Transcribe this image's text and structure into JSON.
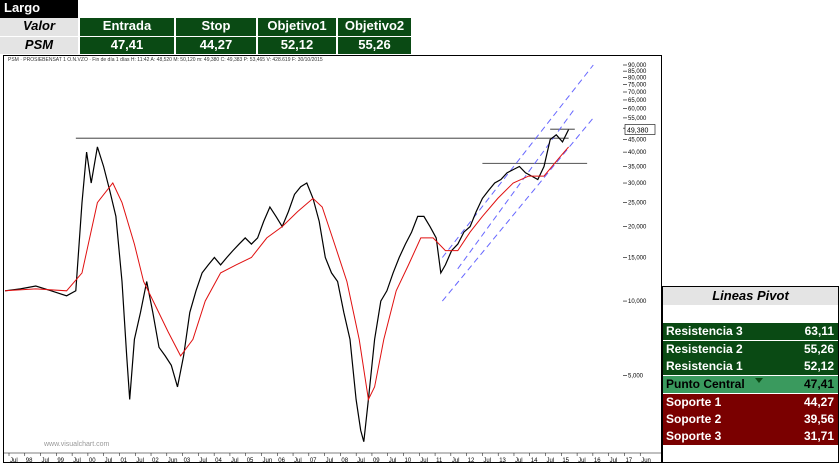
{
  "header": {
    "title": "Largo",
    "columns": [
      "Valor",
      "Entrada",
      "Stop",
      "Objetivo1",
      "Objetivo2"
    ],
    "row": {
      "label": "PSM",
      "values": [
        "47,41",
        "44,27",
        "52,12",
        "55,26"
      ]
    }
  },
  "chart": {
    "info_line": "PSM · PROSIEBENSAT 1 O.N.VZO · Fin de día 1 días H: 11:42 A: 48,520 M: 50,120 m: 49,380 C: 49,383 P: 53,465 V: 428.619 F: 30/10/2015",
    "price_tag": "49,380",
    "watermark": "www.visualchart.com",
    "y_ticks": [
      "90,000",
      "85,000",
      "80,000",
      "75,000",
      "70,000",
      "65,000",
      "60,000",
      "55,000",
      "50,000",
      "45,000",
      "40,000",
      "35,000",
      "30,000",
      "25,000",
      "20,000",
      "15,000",
      "10,000",
      "5,000"
    ],
    "x_ticks": [
      "Jul",
      "98",
      "Jul",
      "99",
      "Jul",
      "00",
      "Jul",
      "01",
      "Jul",
      "02",
      "Jun",
      "03",
      "Jul",
      "04",
      "Jul",
      "05",
      "Jun",
      "06",
      "Jul",
      "07",
      "Jul",
      "08",
      "Jul",
      "09",
      "Jul",
      "10",
      "Jul",
      "11",
      "Jul",
      "12",
      "Jul",
      "13",
      "Jul",
      "14",
      "Jul",
      "15",
      "Jul",
      "16",
      "Jul",
      "17",
      "Jun"
    ]
  },
  "chart_data": {
    "type": "line",
    "ylog": true,
    "ylim": [
      2.5,
      90
    ],
    "x_range": [
      1997.5,
      2017.5
    ],
    "series": [
      {
        "values": [
          [
            1997.5,
            11
          ],
          [
            1998.0,
            11.2
          ],
          [
            1998.5,
            11.5
          ],
          [
            1999.0,
            11
          ],
          [
            1999.5,
            10.5
          ],
          [
            1999.8,
            11
          ],
          [
            2000.0,
            25
          ],
          [
            2000.15,
            40
          ],
          [
            2000.3,
            30
          ],
          [
            2000.5,
            42
          ],
          [
            2000.7,
            35
          ],
          [
            2000.9,
            28
          ],
          [
            2001.1,
            22
          ],
          [
            2001.3,
            12
          ],
          [
            2001.45,
            6
          ],
          [
            2001.55,
            4
          ],
          [
            2001.7,
            7
          ],
          [
            2001.9,
            9
          ],
          [
            2002.1,
            12
          ],
          [
            2002.3,
            9
          ],
          [
            2002.5,
            6.5
          ],
          [
            2002.7,
            6
          ],
          [
            2002.9,
            5.5
          ],
          [
            2003.1,
            4.5
          ],
          [
            2003.3,
            6
          ],
          [
            2003.5,
            9
          ],
          [
            2003.7,
            11
          ],
          [
            2003.9,
            13
          ],
          [
            2004.1,
            14
          ],
          [
            2004.3,
            15
          ],
          [
            2004.5,
            14
          ],
          [
            2004.7,
            15
          ],
          [
            2004.9,
            16
          ],
          [
            2005.1,
            17
          ],
          [
            2005.3,
            18
          ],
          [
            2005.5,
            17
          ],
          [
            2005.7,
            18
          ],
          [
            2005.9,
            21
          ],
          [
            2006.1,
            24
          ],
          [
            2006.3,
            22
          ],
          [
            2006.5,
            20
          ],
          [
            2006.7,
            23
          ],
          [
            2006.9,
            27
          ],
          [
            2007.1,
            29
          ],
          [
            2007.3,
            30
          ],
          [
            2007.5,
            26
          ],
          [
            2007.7,
            21
          ],
          [
            2007.9,
            15
          ],
          [
            2008.1,
            13
          ],
          [
            2008.3,
            12
          ],
          [
            2008.5,
            9
          ],
          [
            2008.7,
            7
          ],
          [
            2008.9,
            4
          ],
          [
            2009.05,
            3
          ],
          [
            2009.15,
            2.7
          ],
          [
            2009.3,
            4
          ],
          [
            2009.5,
            7
          ],
          [
            2009.7,
            10
          ],
          [
            2009.9,
            11
          ],
          [
            2010.1,
            13
          ],
          [
            2010.3,
            15
          ],
          [
            2010.5,
            17
          ],
          [
            2010.7,
            19
          ],
          [
            2010.9,
            22
          ],
          [
            2011.1,
            22
          ],
          [
            2011.3,
            20
          ],
          [
            2011.5,
            18
          ],
          [
            2011.65,
            13
          ],
          [
            2011.8,
            14
          ],
          [
            2012.0,
            16
          ],
          [
            2012.2,
            17
          ],
          [
            2012.4,
            19
          ],
          [
            2012.6,
            20
          ],
          [
            2012.8,
            23
          ],
          [
            2013.0,
            26
          ],
          [
            2013.2,
            28
          ],
          [
            2013.4,
            30
          ],
          [
            2013.6,
            31
          ],
          [
            2013.8,
            33
          ],
          [
            2014.0,
            34
          ],
          [
            2014.2,
            35
          ],
          [
            2014.4,
            33
          ],
          [
            2014.6,
            32
          ],
          [
            2014.8,
            31
          ],
          [
            2015.0,
            35
          ],
          [
            2015.2,
            45
          ],
          [
            2015.4,
            47
          ],
          [
            2015.6,
            44
          ],
          [
            2015.8,
            49.38
          ]
        ]
      },
      {
        "values": [
          [
            1997.5,
            11
          ],
          [
            1998.5,
            11.2
          ],
          [
            1999.5,
            11
          ],
          [
            2000.0,
            13
          ],
          [
            2000.5,
            25
          ],
          [
            2001.0,
            30
          ],
          [
            2001.3,
            25
          ],
          [
            2001.7,
            17
          ],
          [
            2002.0,
            12
          ],
          [
            2002.4,
            9.5
          ],
          [
            2002.8,
            7.5
          ],
          [
            2003.2,
            6
          ],
          [
            2003.6,
            7
          ],
          [
            2004.0,
            10
          ],
          [
            2004.5,
            13
          ],
          [
            2005.0,
            14
          ],
          [
            2005.5,
            15
          ],
          [
            2006.0,
            18
          ],
          [
            2006.5,
            20
          ],
          [
            2007.0,
            23
          ],
          [
            2007.5,
            26
          ],
          [
            2007.8,
            24
          ],
          [
            2008.2,
            17
          ],
          [
            2008.6,
            12
          ],
          [
            2009.0,
            7
          ],
          [
            2009.3,
            4
          ],
          [
            2009.5,
            4.5
          ],
          [
            2009.8,
            7
          ],
          [
            2010.2,
            11
          ],
          [
            2010.6,
            14
          ],
          [
            2011.0,
            18
          ],
          [
            2011.4,
            18
          ],
          [
            2011.8,
            16
          ],
          [
            2012.2,
            16
          ],
          [
            2012.6,
            19
          ],
          [
            2013.0,
            22
          ],
          [
            2013.5,
            26
          ],
          [
            2014.0,
            30
          ],
          [
            2014.5,
            32
          ],
          [
            2015.0,
            32
          ],
          [
            2015.5,
            38
          ],
          [
            2015.8,
            42
          ]
        ]
      }
    ],
    "reference_lines": [
      {
        "y": 45.5,
        "x_from": 1999.8,
        "x_to": 2015.8
      },
      {
        "y": 36,
        "x_from": 2013.0,
        "x_to": 2016.4
      },
      {
        "y": 49.5,
        "x_from": 2015.2,
        "x_to": 2016.0
      }
    ]
  },
  "pivot": {
    "title": "Lineas Pivot",
    "rows": [
      {
        "name": "Resistencia 3",
        "value": "63,11"
      },
      {
        "name": "Resistencia 2",
        "value": "55,26"
      },
      {
        "name": "Resistencia 1",
        "value": "52,12"
      },
      {
        "name": "Punto Central",
        "value": "47,41"
      },
      {
        "name": "Soporte 1",
        "value": "44,27"
      },
      {
        "name": "Soporte 2",
        "value": "39,56"
      },
      {
        "name": "Soporte 3",
        "value": "31,71"
      }
    ]
  },
  "colors": {
    "dark_green": "#0a4a14",
    "mid_green": "#3a9a5e",
    "dark_red": "#7a0000",
    "price": "#000000",
    "ma": "#e01010",
    "channel": "#6666ff"
  }
}
